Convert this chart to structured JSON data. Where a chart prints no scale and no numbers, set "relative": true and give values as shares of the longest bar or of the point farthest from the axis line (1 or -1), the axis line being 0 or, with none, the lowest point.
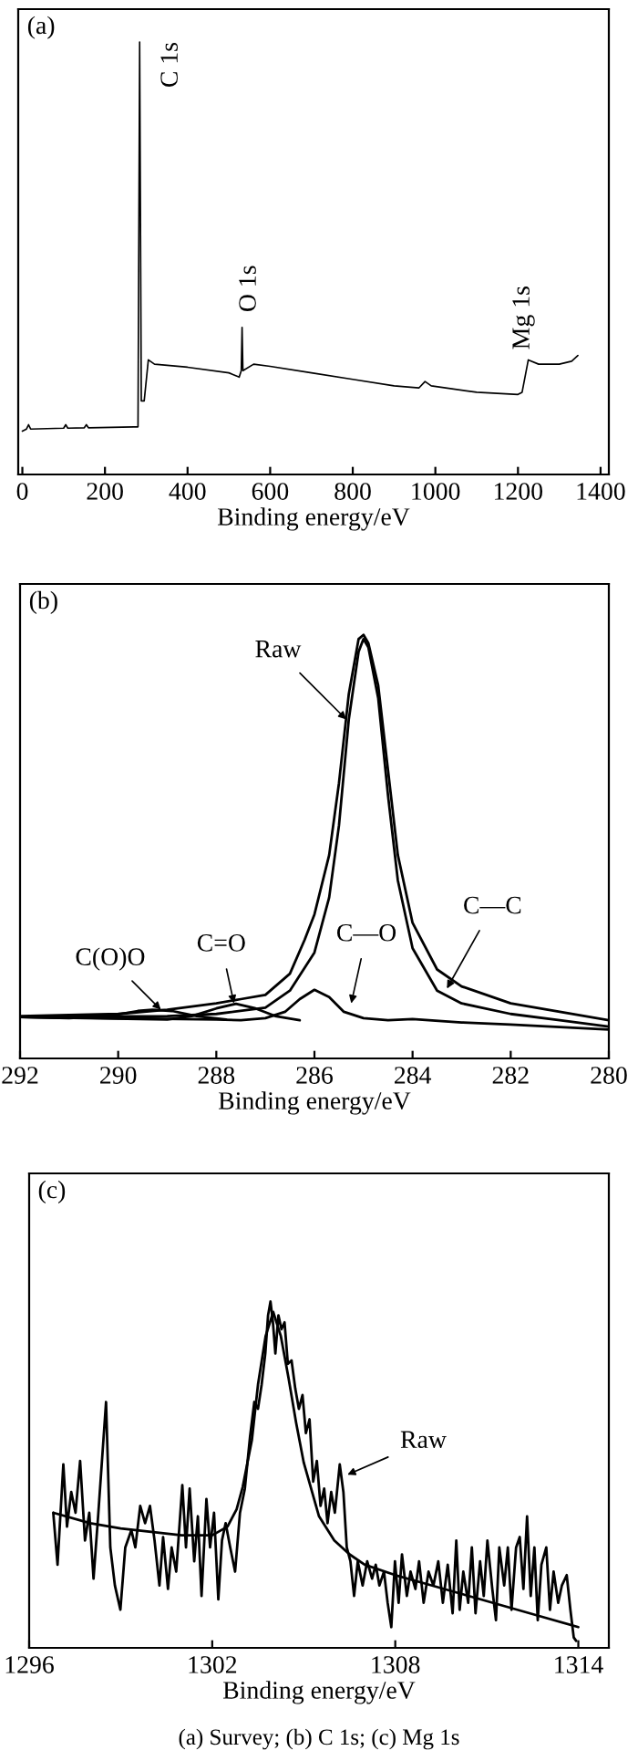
{
  "chart_data": [
    {
      "type": "line",
      "title": "(a)",
      "xlabel": "Binding energy/eV",
      "relative": true,
      "xlim": [
        -10,
        1420
      ],
      "xticks": [
        0,
        200,
        400,
        600,
        800,
        1000,
        1200,
        1400
      ],
      "series": [
        {
          "color": "#000000",
          "x": [
            0,
            10,
            15,
            20,
            100,
            105,
            110,
            150,
            155,
            160,
            270,
            280,
            284,
            288,
            295,
            305,
            320,
            400,
            500,
            525,
            530,
            532,
            534,
            560,
            600,
            700,
            800,
            900,
            960,
            975,
            990,
            1100,
            1200,
            1210,
            1225,
            1250,
            1300,
            1330,
            1345
          ],
          "values": [
            0.1,
            0.105,
            0.115,
            0.105,
            0.107,
            0.115,
            0.107,
            0.108,
            0.115,
            0.108,
            0.11,
            0.11,
            1.0,
            0.17,
            0.17,
            0.265,
            0.255,
            0.248,
            0.235,
            0.225,
            0.24,
            0.34,
            0.24,
            0.255,
            0.25,
            0.235,
            0.22,
            0.205,
            0.2,
            0.215,
            0.205,
            0.19,
            0.185,
            0.19,
            0.265,
            0.255,
            0.255,
            0.262,
            0.275
          ]
        }
      ],
      "annotations": [
        {
          "text": "C 1s",
          "x": 284,
          "y": 1.0
        },
        {
          "text": "O 1s",
          "x": 532,
          "y": 0.34
        },
        {
          "text": "Mg 1s",
          "x": 1225,
          "y": 0.265
        }
      ]
    },
    {
      "type": "line",
      "title": "(b)",
      "xlabel": "Binding energy/eV",
      "relative": true,
      "xlim": [
        292,
        280
      ],
      "xticks": [
        292,
        290,
        288,
        286,
        284,
        282,
        280
      ],
      "series": [
        {
          "color": "#000000",
          "x": [
            292,
            290,
            289,
            288,
            287.5,
            287,
            286.5,
            286.2,
            286,
            285.7,
            285.5,
            285.3,
            285.1,
            285,
            284.9,
            284.7,
            284.5,
            284.3,
            284,
            283.5,
            283,
            282,
            281,
            280
          ],
          "values": [
            0.1,
            0.105,
            0.115,
            0.13,
            0.14,
            0.15,
            0.2,
            0.28,
            0.34,
            0.48,
            0.65,
            0.86,
            0.99,
            1.0,
            0.98,
            0.88,
            0.68,
            0.48,
            0.32,
            0.21,
            0.17,
            0.13,
            0.11,
            0.09
          ]
        },
        {
          "color": "#000000",
          "x": [
            292,
            289,
            288,
            287,
            286.5,
            286,
            285.7,
            285.5,
            285.3,
            285.1,
            285,
            284.9,
            284.7,
            284.5,
            284.3,
            284,
            283.5,
            283,
            282,
            281,
            280
          ],
          "values": [
            0.098,
            0.1,
            0.105,
            0.12,
            0.16,
            0.25,
            0.38,
            0.55,
            0.8,
            0.96,
            0.99,
            0.97,
            0.85,
            0.62,
            0.42,
            0.26,
            0.16,
            0.13,
            0.105,
            0.09,
            0.075
          ]
        },
        {
          "color": "#000000",
          "x": [
            292,
            288,
            287.5,
            287,
            286.6,
            286.3,
            286,
            285.7,
            285.4,
            285,
            284.5,
            284,
            283,
            282,
            280
          ],
          "values": [
            0.098,
            0.092,
            0.09,
            0.095,
            0.11,
            0.14,
            0.162,
            0.145,
            0.11,
            0.095,
            0.09,
            0.093,
            0.085,
            0.08,
            0.068
          ]
        },
        {
          "color": "#000000",
          "x": [
            292,
            289,
            288.5,
            288,
            287.6,
            287.2,
            286.8,
            286.3
          ],
          "values": [
            0.098,
            0.092,
            0.1,
            0.118,
            0.129,
            0.118,
            0.1,
            0.09
          ]
        },
        {
          "color": "#000000",
          "x": [
            292,
            291,
            290.2,
            289.6,
            289.3,
            288.9,
            288.4,
            287.8
          ],
          "values": [
            0.098,
            0.095,
            0.1,
            0.112,
            0.115,
            0.112,
            0.1,
            0.092
          ]
        }
      ],
      "annotations": [
        {
          "text": "Raw",
          "x": 285.35,
          "y": 0.8
        },
        {
          "text": "C—C",
          "x": 283.3,
          "y": 0.165
        },
        {
          "text": "C—O",
          "x": 285.25,
          "y": 0.13
        },
        {
          "text": "C=O",
          "x": 287.64,
          "y": 0.13
        },
        {
          "text": "C(O)O",
          "x": 289.13,
          "y": 0.115
        }
      ]
    },
    {
      "type": "line",
      "title": "(c)",
      "xlabel": "Binding energy/eV",
      "relative": true,
      "xlim": [
        1296,
        1315
      ],
      "xticks": [
        1296,
        1302,
        1308,
        1314
      ],
      "series": [
        {
          "color": "#000000",
          "x": [
            1296.79,
            1296.93,
            1297.12,
            1297.24,
            1297.38,
            1297.52,
            1297.67,
            1297.83,
            1297.97,
            1298.11,
            1298.26,
            1298.52,
            1298.66,
            1298.81,
            1298.99,
            1299.15,
            1299.35,
            1299.48,
            1299.64,
            1299.8,
            1299.96,
            1300.11,
            1300.27,
            1300.39,
            1300.55,
            1300.67,
            1300.82,
            1301.02,
            1301.14,
            1301.26,
            1301.41,
            1301.53,
            1301.65,
            1301.81,
            1301.93,
            1302.06,
            1302.2,
            1302.32,
            1302.44,
            1302.59,
            1302.75,
            1302.91,
            1303.07,
            1303.24,
            1303.38,
            1303.5,
            1303.62,
            1303.74,
            1303.83,
            1303.91,
            1303.99,
            1304.07,
            1304.17,
            1304.27,
            1304.37,
            1304.48,
            1304.6,
            1304.72,
            1304.84,
            1304.96,
            1305.07,
            1305.19,
            1305.31,
            1305.43,
            1305.55,
            1305.67,
            1305.78,
            1305.9,
            1306.02,
            1306.18,
            1306.3,
            1306.41,
            1306.53,
            1306.65,
            1306.77,
            1306.93,
            1307.08,
            1307.24,
            1307.36,
            1307.48,
            1307.63,
            1307.75,
            1307.87,
            1307.99,
            1308.11,
            1308.22,
            1308.38,
            1308.5,
            1308.66,
            1308.78,
            1308.93,
            1309.09,
            1309.25,
            1309.41,
            1309.56,
            1309.72,
            1309.88,
            1310.0,
            1310.11,
            1310.23,
            1310.39,
            1310.51,
            1310.63,
            1310.78,
            1310.9,
            1311.02,
            1311.18,
            1311.3,
            1311.41,
            1311.57,
            1311.69,
            1311.81,
            1311.96,
            1312.08,
            1312.2,
            1312.32,
            1312.44,
            1312.56,
            1312.67,
            1312.79,
            1312.95,
            1313.07,
            1313.19,
            1313.34,
            1313.46,
            1313.62,
            1313.74,
            1313.85,
            1313.93
          ],
          "values": [
            0.39,
            0.24,
            0.53,
            0.35,
            0.45,
            0.39,
            0.54,
            0.31,
            0.39,
            0.2,
            0.38,
            0.71,
            0.29,
            0.18,
            0.11,
            0.29,
            0.34,
            0.29,
            0.41,
            0.36,
            0.41,
            0.31,
            0.18,
            0.32,
            0.17,
            0.29,
            0.22,
            0.47,
            0.29,
            0.46,
            0.25,
            0.38,
            0.15,
            0.43,
            0.29,
            0.39,
            0.14,
            0.31,
            0.36,
            0.29,
            0.22,
            0.39,
            0.46,
            0.61,
            0.71,
            0.69,
            0.76,
            0.85,
            0.96,
            1.0,
            0.94,
            0.85,
            0.96,
            0.92,
            0.94,
            0.82,
            0.83,
            0.75,
            0.69,
            0.73,
            0.62,
            0.66,
            0.48,
            0.54,
            0.41,
            0.46,
            0.36,
            0.45,
            0.39,
            0.53,
            0.45,
            0.29,
            0.25,
            0.15,
            0.25,
            0.18,
            0.25,
            0.2,
            0.24,
            0.18,
            0.22,
            0.13,
            0.06,
            0.25,
            0.13,
            0.27,
            0.15,
            0.22,
            0.17,
            0.25,
            0.13,
            0.22,
            0.18,
            0.25,
            0.13,
            0.24,
            0.1,
            0.31,
            0.11,
            0.22,
            0.13,
            0.29,
            0.1,
            0.25,
            0.15,
            0.31,
            0.17,
            0.08,
            0.29,
            0.18,
            0.29,
            0.11,
            0.29,
            0.32,
            0.17,
            0.38,
            0.15,
            0.29,
            0.08,
            0.24,
            0.29,
            0.11,
            0.22,
            0.13,
            0.18,
            0.21,
            0.11,
            0.03,
            0.02
          ]
        },
        {
          "color": "#000000",
          "x": [
            1296.8,
            1298,
            1299,
            1300,
            1301,
            1302,
            1302.5,
            1302.8,
            1303,
            1303.3,
            1303.5,
            1303.75,
            1304,
            1304.25,
            1304.5,
            1304.75,
            1305,
            1305.5,
            1306,
            1306.5,
            1307,
            1308,
            1309,
            1310,
            1311,
            1312,
            1313,
            1314
          ],
          "values": [
            0.39,
            0.36,
            0.345,
            0.335,
            0.325,
            0.325,
            0.35,
            0.4,
            0.465,
            0.6,
            0.76,
            0.9,
            0.97,
            0.9,
            0.78,
            0.65,
            0.535,
            0.38,
            0.31,
            0.27,
            0.24,
            0.21,
            0.185,
            0.16,
            0.135,
            0.11,
            0.085,
            0.06
          ]
        }
      ],
      "annotations": [
        {
          "text": "Raw",
          "x": 1306.43,
          "y": 0.5
        },
        "(a) Survey; (b) C 1s; (c) Mg 1s"
      ]
    }
  ]
}
